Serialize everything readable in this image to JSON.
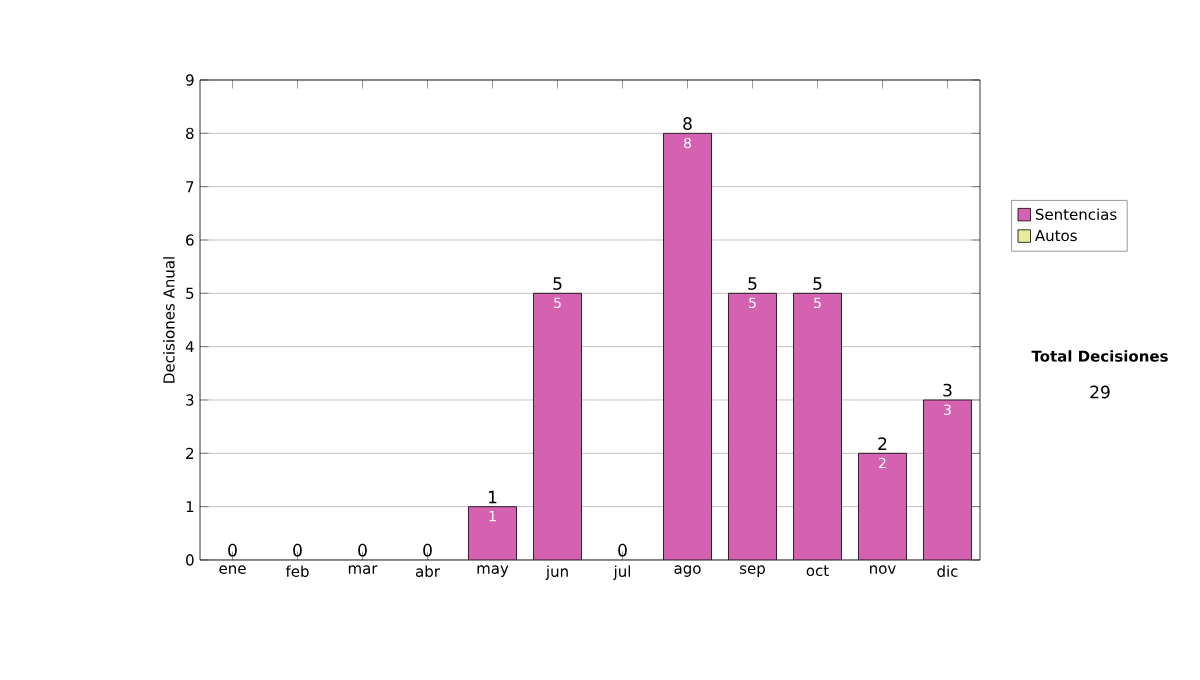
{
  "chart_data": {
    "type": "bar",
    "ylabel": "Decisiones Anual",
    "categories": [
      "ene",
      "feb",
      "mar",
      "abr",
      "may",
      "jun",
      "jul",
      "ago",
      "sep",
      "oct",
      "nov",
      "dic"
    ],
    "series": [
      {
        "name": "Sentencias",
        "color": "#d462b0",
        "values": [
          0,
          0,
          0,
          0,
          1,
          5,
          0,
          8,
          5,
          5,
          2,
          3
        ],
        "value_labels": [
          null,
          null,
          null,
          null,
          "1",
          "5",
          null,
          "8",
          "5",
          "5",
          "2",
          "3"
        ]
      },
      {
        "name": "Autos",
        "color": "#e6ee9c",
        "values": [
          0,
          0,
          0,
          0,
          0,
          0,
          0,
          0,
          0,
          0,
          0,
          0
        ]
      }
    ],
    "stacked": true,
    "totals": [
      "0",
      "0",
      "0",
      "0",
      "1",
      "5",
      "0",
      "8",
      "5",
      "5",
      "2",
      "3"
    ],
    "ylim": [
      0,
      9
    ],
    "yticks": [
      0,
      1,
      2,
      3,
      4,
      5,
      6,
      7,
      8,
      9
    ],
    "grid": "y",
    "legend": "right",
    "annotations": [
      "Total Decisiones",
      "29"
    ]
  }
}
